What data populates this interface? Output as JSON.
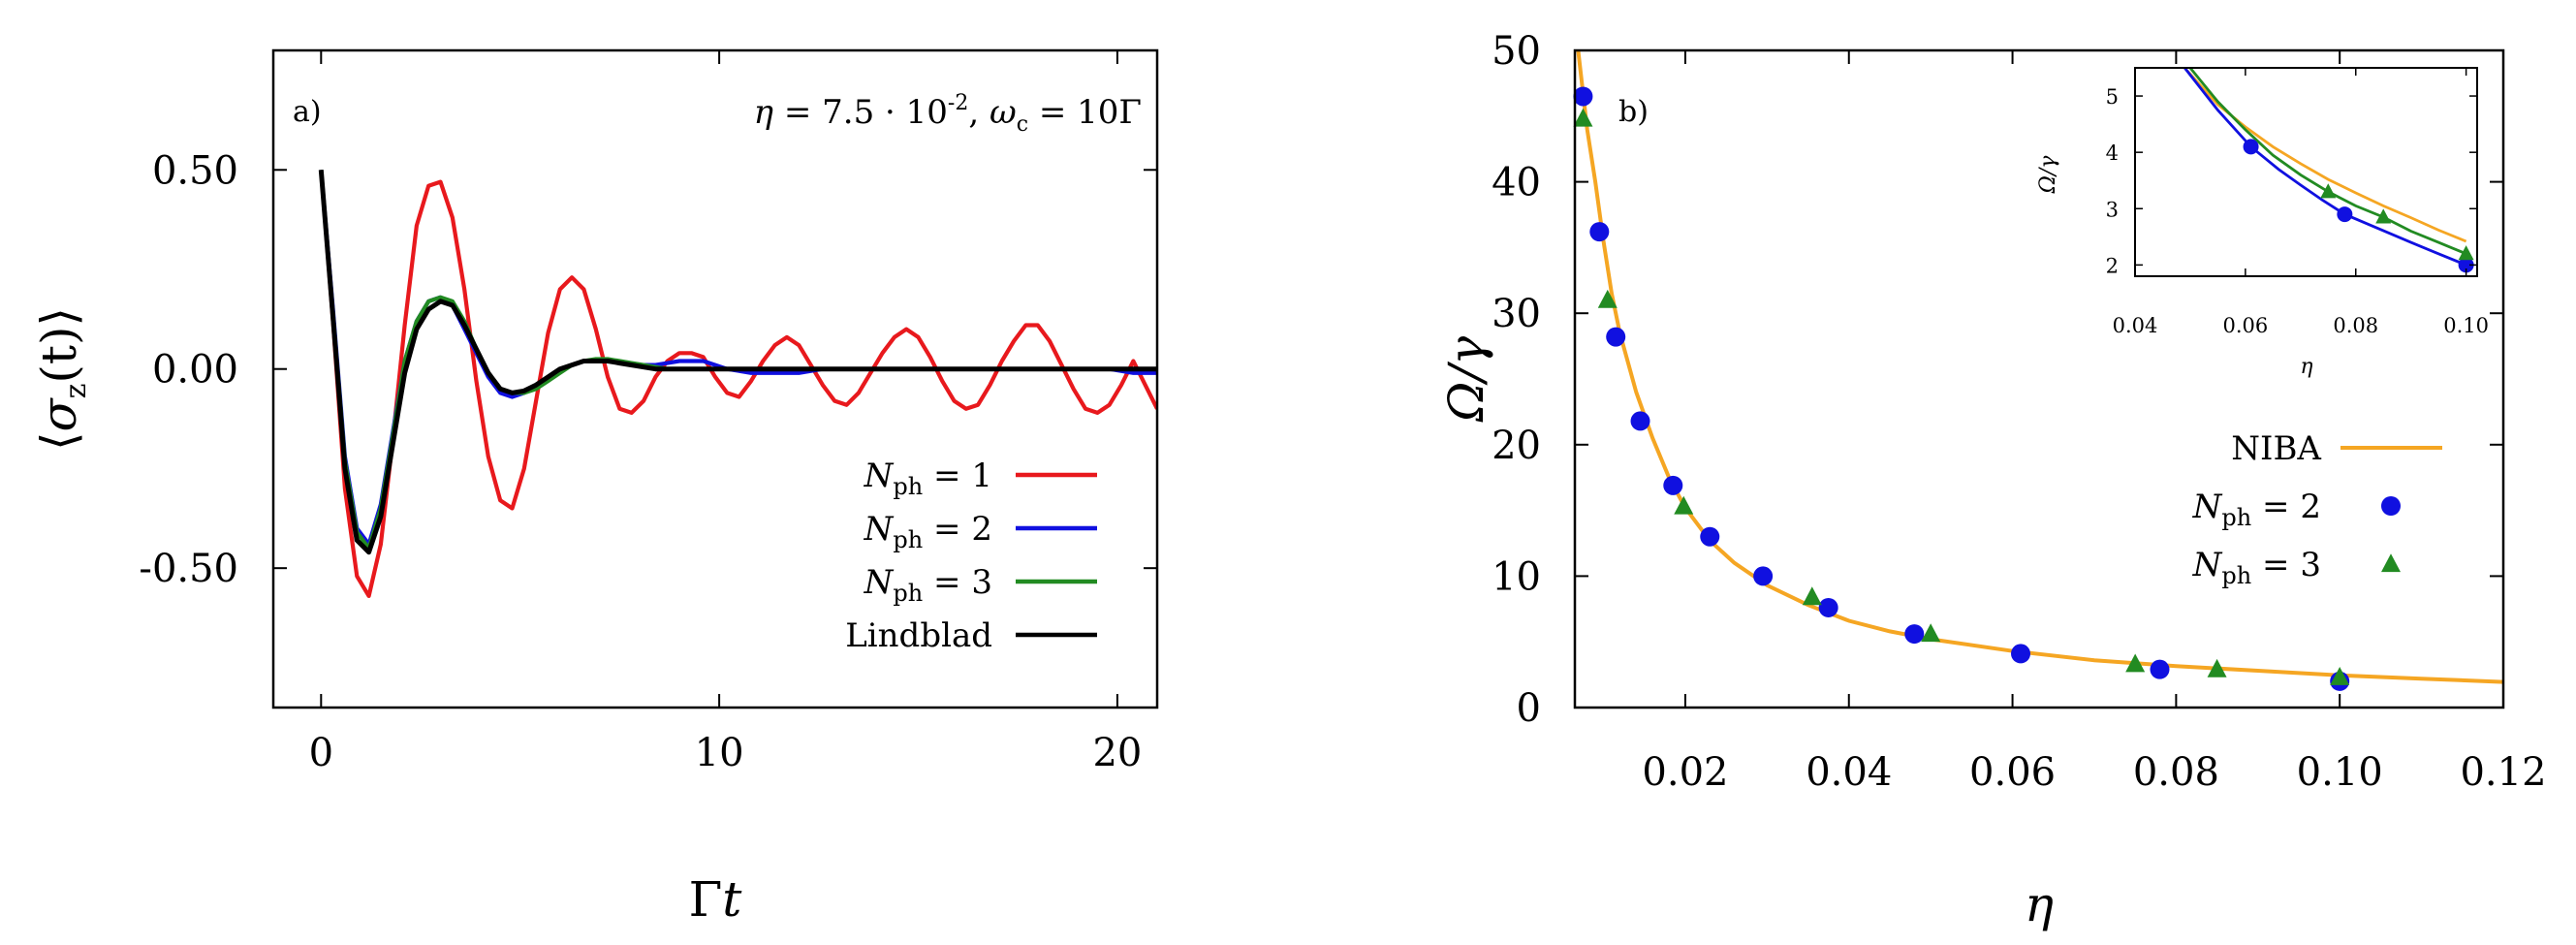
{
  "chart_data": [
    {
      "panel": "a)",
      "type": "line",
      "parameters": "η = 7.5 · 10^-2, ω_c = 10Γ",
      "parameters_text": {
        "eta_symbol": "η",
        "eq1": " = 7.5 · 10",
        "exp": "-2",
        "comma": ", ",
        "omega_symbol": "ω",
        "omega_sub": "c",
        "eq2": " = 10Γ"
      },
      "xlabel": "Γt",
      "xlabel_parts": {
        "gamma": "Γ",
        "t": "t"
      },
      "ylabel": "⟨σz(t)⟩",
      "ylabel_parts": {
        "open": "⟨",
        "sigma": "σ",
        "sub": "z",
        "arg": "(t)",
        "close": "⟩"
      },
      "xlim": [
        -1.2,
        21
      ],
      "ylim": [
        -0.85,
        0.8
      ],
      "xticks": [
        0,
        10,
        20
      ],
      "xtick_labels": [
        "0",
        "10",
        "20"
      ],
      "yticks": [
        0.5,
        0.0,
        -0.5
      ],
      "ytick_labels": [
        "0.50",
        "0.00",
        "-0.50"
      ],
      "series": [
        {
          "name": "Nph = 1",
          "legend": {
            "N": "N",
            "sub": "ph",
            "eq": " = 1"
          },
          "color": "#e8191d",
          "x": [
            0,
            0.3,
            0.6,
            0.9,
            1.2,
            1.5,
            1.8,
            2.1,
            2.4,
            2.7,
            3.0,
            3.3,
            3.6,
            3.9,
            4.2,
            4.5,
            4.8,
            5.1,
            5.4,
            5.7,
            6.0,
            6.3,
            6.6,
            6.9,
            7.2,
            7.5,
            7.8,
            8.1,
            8.4,
            8.7,
            9.0,
            9.3,
            9.6,
            9.9,
            10.2,
            10.5,
            10.8,
            11.1,
            11.4,
            11.7,
            12.0,
            12.3,
            12.6,
            12.9,
            13.2,
            13.5,
            13.8,
            14.1,
            14.4,
            14.7,
            15.0,
            15.3,
            15.6,
            15.9,
            16.2,
            16.5,
            16.8,
            17.1,
            17.4,
            17.7,
            18.0,
            18.3,
            18.6,
            18.9,
            19.2,
            19.5,
            19.8,
            20.1,
            20.4,
            20.7,
            21.0
          ],
          "y": [
            0.5,
            0.12,
            -0.3,
            -0.52,
            -0.57,
            -0.44,
            -0.18,
            0.11,
            0.36,
            0.46,
            0.47,
            0.38,
            0.2,
            -0.03,
            -0.22,
            -0.33,
            -0.35,
            -0.25,
            -0.08,
            0.09,
            0.2,
            0.23,
            0.2,
            0.1,
            -0.02,
            -0.1,
            -0.11,
            -0.08,
            -0.02,
            0.02,
            0.04,
            0.04,
            0.03,
            -0.02,
            -0.06,
            -0.07,
            -0.03,
            0.02,
            0.06,
            0.08,
            0.06,
            0.01,
            -0.04,
            -0.08,
            -0.09,
            -0.06,
            -0.01,
            0.04,
            0.08,
            0.1,
            0.08,
            0.03,
            -0.03,
            -0.08,
            -0.1,
            -0.09,
            -0.04,
            0.02,
            0.07,
            0.11,
            0.11,
            0.07,
            0.01,
            -0.05,
            -0.1,
            -0.11,
            -0.09,
            -0.04,
            0.02,
            -0.04,
            -0.1
          ]
        },
        {
          "name": "Nph = 2",
          "legend": {
            "N": "N",
            "sub": "ph",
            "eq": " = 2"
          },
          "color": "#1010e0",
          "x": [
            0,
            0.3,
            0.6,
            0.9,
            1.2,
            1.5,
            1.8,
            2.1,
            2.4,
            2.7,
            3.0,
            3.3,
            3.6,
            3.9,
            4.2,
            4.5,
            4.8,
            5.1,
            5.4,
            5.7,
            6.0,
            6.3,
            6.6,
            6.9,
            7.2,
            7.5,
            7.8,
            8.1,
            8.4,
            8.7,
            9.0,
            9.6,
            10.2,
            10.8,
            11.4,
            12.0,
            12.6,
            13.2,
            13.8,
            14.4,
            15.0,
            15.6,
            16.2,
            16.8,
            17.4,
            18.0,
            18.6,
            19.2,
            19.8,
            20.4,
            21.0
          ],
          "y": [
            0.5,
            0.15,
            -0.22,
            -0.4,
            -0.44,
            -0.34,
            -0.16,
            0.02,
            0.12,
            0.17,
            0.18,
            0.16,
            0.1,
            0.04,
            -0.02,
            -0.06,
            -0.07,
            -0.06,
            -0.04,
            -0.02,
            0.0,
            0.01,
            0.02,
            0.02,
            0.02,
            0.015,
            0.01,
            0.01,
            0.01,
            0.015,
            0.02,
            0.02,
            0.0,
            -0.01,
            -0.01,
            -0.01,
            0.0,
            0.0,
            0.0,
            0.0,
            0.0,
            0.0,
            0.0,
            0.0,
            0.0,
            0.0,
            0.0,
            0.0,
            0.0,
            -0.01,
            -0.01
          ]
        },
        {
          "name": "Nph = 3",
          "legend": {
            "N": "N",
            "sub": "ph",
            "eq": " = 3"
          },
          "color": "#228b22",
          "x": [
            0,
            0.3,
            0.6,
            0.9,
            1.2,
            1.5,
            1.8,
            2.1,
            2.4,
            2.7,
            3.0,
            3.3,
            3.6,
            3.9,
            4.2,
            4.5,
            4.8,
            5.1,
            5.4,
            5.7,
            6.0,
            6.3,
            6.6,
            6.9,
            7.2,
            7.5,
            7.8,
            8.1,
            8.4,
            8.7,
            9.0,
            9.6,
            10.2,
            10.8,
            11.4,
            12.0,
            13.0,
            14.0,
            15.0,
            16.0,
            17.0,
            18.0,
            19.0,
            20.0,
            21.0
          ],
          "y": [
            0.5,
            0.14,
            -0.23,
            -0.41,
            -0.45,
            -0.35,
            -0.17,
            0.02,
            0.12,
            0.17,
            0.18,
            0.17,
            0.12,
            0.05,
            -0.01,
            -0.05,
            -0.06,
            -0.06,
            -0.05,
            -0.03,
            -0.01,
            0.01,
            0.02,
            0.025,
            0.025,
            0.02,
            0.015,
            0.01,
            0.005,
            0.0,
            0.0,
            0.0,
            0.0,
            0.0,
            0.0,
            0.0,
            0.0,
            0.0,
            0.0,
            0.0,
            0.0,
            0.0,
            0.0,
            0.0,
            0.0
          ]
        },
        {
          "name": "Lindblad",
          "legend": {
            "N": "",
            "sub": "",
            "eq": "Lindblad"
          },
          "color": "#000000",
          "x": [
            0,
            0.3,
            0.6,
            0.9,
            1.2,
            1.5,
            1.8,
            2.1,
            2.4,
            2.7,
            3.0,
            3.3,
            3.6,
            3.9,
            4.2,
            4.5,
            4.8,
            5.1,
            5.4,
            5.7,
            6.0,
            6.3,
            6.6,
            6.9,
            7.2,
            7.5,
            7.8,
            8.1,
            8.4,
            8.7,
            9.0,
            9.6,
            10.2,
            10.8,
            11.4,
            12.0,
            13.0,
            14.0,
            15.0,
            16.0,
            17.0,
            18.0,
            19.0,
            20.0,
            21.0
          ],
          "y": [
            0.5,
            0.13,
            -0.25,
            -0.43,
            -0.46,
            -0.37,
            -0.19,
            -0.01,
            0.1,
            0.15,
            0.17,
            0.16,
            0.11,
            0.05,
            -0.01,
            -0.05,
            -0.06,
            -0.055,
            -0.04,
            -0.02,
            0.0,
            0.01,
            0.02,
            0.02,
            0.02,
            0.015,
            0.01,
            0.005,
            0.0,
            0.0,
            0.0,
            0.0,
            0.0,
            0.0,
            0.0,
            0.0,
            0.0,
            0.0,
            0.0,
            0.0,
            0.0,
            0.0,
            0.0,
            0.0,
            0.0
          ]
        }
      ]
    },
    {
      "panel": "b)",
      "type": "scatter",
      "xlabel": "η",
      "ylabel": "Ω/γ",
      "xlim": [
        0.0065,
        0.12
      ],
      "ylim": [
        0,
        50
      ],
      "xticks": [
        0.02,
        0.04,
        0.06,
        0.08,
        0.1,
        0.12
      ],
      "xtick_labels": [
        "0.02",
        "0.04",
        "0.06",
        "0.08",
        "0.10",
        "0.12"
      ],
      "yticks": [
        0,
        10,
        20,
        30,
        40,
        50
      ],
      "ytick_labels": [
        "0",
        "10",
        "20",
        "30",
        "40",
        "50"
      ],
      "series": [
        {
          "name": "NIBA",
          "marker": "line",
          "color": "#f5a623",
          "legend": {
            "N": "",
            "sub": "",
            "eq": "NIBA"
          },
          "x": [
            0.0069,
            0.008,
            0.009,
            0.01,
            0.011,
            0.012,
            0.014,
            0.016,
            0.018,
            0.02,
            0.023,
            0.026,
            0.03,
            0.035,
            0.04,
            0.045,
            0.05,
            0.06,
            0.07,
            0.08,
            0.09,
            0.1,
            0.11,
            0.12
          ],
          "y": [
            50,
            44,
            40,
            35.5,
            31.5,
            28.5,
            24,
            20.5,
            17.5,
            15.2,
            12.7,
            11.0,
            9.3,
            7.8,
            6.6,
            5.8,
            5.2,
            4.3,
            3.6,
            3.15,
            2.8,
            2.45,
            2.2,
            1.95
          ]
        },
        {
          "name": "Nph = 2",
          "marker": "circle",
          "color": "#1010e0",
          "legend": {
            "N": "N",
            "sub": "ph",
            "eq": " = 2"
          },
          "x": [
            0.0075,
            0.0095,
            0.0115,
            0.0145,
            0.0185,
            0.023,
            0.0295,
            0.0375,
            0.048,
            0.061,
            0.078,
            0.1
          ],
          "y": [
            46.5,
            36.2,
            28.2,
            21.8,
            16.9,
            13.0,
            10.0,
            7.6,
            5.6,
            4.1,
            2.9,
            2.0
          ]
        },
        {
          "name": "Nph = 3",
          "marker": "triangle",
          "color": "#228b22",
          "legend": {
            "N": "N",
            "sub": "ph",
            "eq": " = 3"
          },
          "x": [
            0.0075,
            0.0105,
            0.0198,
            0.0355,
            0.05,
            0.075,
            0.085,
            0.1
          ],
          "y": [
            44.8,
            31.0,
            15.3,
            8.4,
            5.6,
            3.3,
            2.9,
            2.3
          ]
        }
      ],
      "inset": {
        "xlabel": "η",
        "ylabel": "Ω/γ",
        "xlim": [
          0.04,
          0.102
        ],
        "ylim": [
          1.8,
          5.5
        ],
        "xticks": [
          0.04,
          0.06,
          0.08,
          0.1
        ],
        "xtick_labels": [
          "0.04",
          "0.06",
          "0.08",
          "0.10"
        ],
        "yticks": [
          2,
          3,
          4,
          5
        ],
        "ytick_labels": [
          "2",
          "3",
          "4",
          "5"
        ],
        "lines": [
          {
            "name": "NIBA",
            "color": "#f5a623",
            "x": [
              0.049,
              0.055,
              0.06,
              0.065,
              0.07,
              0.075,
              0.08,
              0.085,
              0.09,
              0.095,
              0.1
            ],
            "y": [
              5.5,
              4.85,
              4.45,
              4.1,
              3.8,
              3.52,
              3.28,
              3.05,
              2.84,
              2.62,
              2.42
            ]
          },
          {
            "name": "Nph = 2",
            "color": "#1010e0",
            "x": [
              0.049,
              0.055,
              0.061,
              0.066,
              0.07,
              0.074,
              0.078,
              0.084,
              0.09,
              0.095,
              0.1
            ],
            "y": [
              5.5,
              4.75,
              4.1,
              3.7,
              3.42,
              3.15,
              2.9,
              2.65,
              2.4,
              2.2,
              2.0
            ]
          },
          {
            "name": "Nph = 3",
            "color": "#228b22",
            "x": [
              0.05,
              0.055,
              0.06,
              0.065,
              0.07,
              0.075,
              0.08,
              0.085,
              0.09,
              0.095,
              0.1
            ],
            "y": [
              5.5,
              4.9,
              4.4,
              3.95,
              3.6,
              3.3,
              3.05,
              2.85,
              2.6,
              2.4,
              2.2
            ]
          }
        ],
        "points": [
          {
            "series": "Nph = 2",
            "marker": "circle",
            "color": "#1010e0",
            "x": [
              0.061,
              0.078,
              0.1
            ],
            "y": [
              4.1,
              2.9,
              2.0
            ]
          },
          {
            "series": "Nph = 3",
            "marker": "triangle",
            "color": "#228b22",
            "x": [
              0.075,
              0.085,
              0.1
            ],
            "y": [
              3.3,
              2.85,
              2.2
            ]
          }
        ]
      }
    }
  ]
}
